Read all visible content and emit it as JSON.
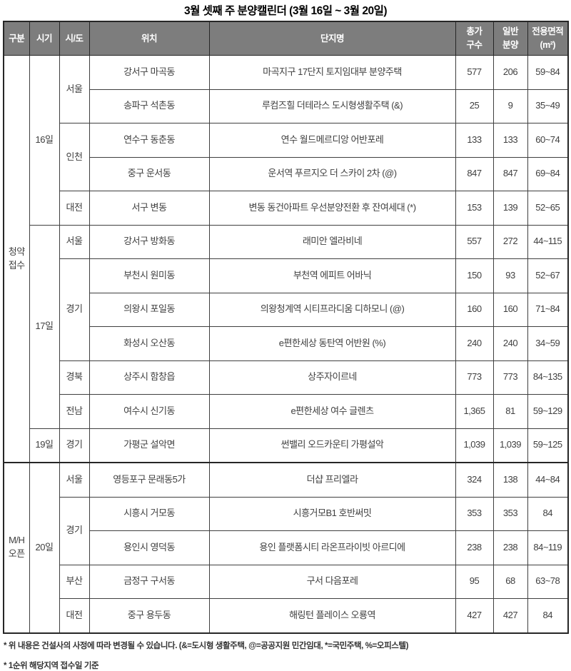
{
  "title": "3월 셋째 주 분양캘린더 (3월 16일 ~ 3월 20일)",
  "colors": {
    "header_bg": "#7d7d7d",
    "header_text": "#ffffff",
    "body_text": "#3f3f3f",
    "border": "#3f3f3f"
  },
  "table": {
    "headers": [
      "구분",
      "시기",
      "시/도",
      "위치",
      "단지명",
      "총가\n구수",
      "일반\n분양",
      "전용면적\n(m²)"
    ]
  },
  "groups": [
    {
      "category": "청약\n접수",
      "days": [
        {
          "day": "16일",
          "regions": [
            {
              "sido": "서울",
              "rows": [
                {
                  "location": "강서구 마곡동",
                  "complex": "마곡지구 17단지 토지임대부 분양주택",
                  "total": "577",
                  "general": "206",
                  "area": "59~84"
                },
                {
                  "location": "송파구 석촌동",
                  "complex": "루컴즈힐 더테라스 도시형생활주택 (&)",
                  "total": "25",
                  "general": "9",
                  "area": "35~49"
                }
              ]
            },
            {
              "sido": "인천",
              "rows": [
                {
                  "location": "연수구 동춘동",
                  "complex": "연수 월드메르디앙 어반포레",
                  "total": "133",
                  "general": "133",
                  "area": "60~74"
                },
                {
                  "location": "중구 운서동",
                  "complex": "운서역 푸르지오 더 스카이 2차 (@)",
                  "total": "847",
                  "general": "847",
                  "area": "69~84"
                }
              ]
            },
            {
              "sido": "대전",
              "rows": [
                {
                  "location": "서구 변동",
                  "complex": "변동 동건아파트 우선분양전환 후 잔여세대 (*)",
                  "total": "153",
                  "general": "139",
                  "area": "52~65"
                }
              ]
            }
          ]
        },
        {
          "day": "17일",
          "regions": [
            {
              "sido": "서울",
              "rows": [
                {
                  "location": "강서구 방화동",
                  "complex": "래미안 엘라비네",
                  "total": "557",
                  "general": "272",
                  "area": "44~115"
                }
              ]
            },
            {
              "sido": "경기",
              "rows": [
                {
                  "location": "부천시 원미동",
                  "complex": "부천역 에피트 어바닉",
                  "total": "150",
                  "general": "93",
                  "area": "52~67"
                },
                {
                  "location": "의왕시 포일동",
                  "complex": "의왕청계역 시티프라디움 디하모니 (@)",
                  "total": "160",
                  "general": "160",
                  "area": "71~84"
                },
                {
                  "location": "화성시 오산동",
                  "complex": "e편한세상 동탄역 어반원 (%)",
                  "total": "240",
                  "general": "240",
                  "area": "34~59"
                }
              ]
            },
            {
              "sido": "경북",
              "rows": [
                {
                  "location": "상주시 함창읍",
                  "complex": "상주자이르네",
                  "total": "773",
                  "general": "773",
                  "area": "84~135"
                }
              ]
            },
            {
              "sido": "전남",
              "rows": [
                {
                  "location": "여수시 신기동",
                  "complex": "e편한세상 여수 글렌츠",
                  "total": "1,365",
                  "general": "81",
                  "area": "59~129"
                }
              ]
            }
          ]
        },
        {
          "day": "19일",
          "regions": [
            {
              "sido": "경기",
              "rows": [
                {
                  "location": "가평군 설악면",
                  "complex": "썬밸리 오드카운티 가평설악",
                  "total": "1,039",
                  "general": "1,039",
                  "area": "59~125"
                }
              ]
            }
          ]
        }
      ]
    },
    {
      "category": "M/H\n오픈",
      "days": [
        {
          "day": "20일",
          "regions": [
            {
              "sido": "서울",
              "rows": [
                {
                  "location": "영등포구 문래동5가",
                  "complex": "더샵 프리엘라",
                  "total": "324",
                  "general": "138",
                  "area": "44~84"
                }
              ]
            },
            {
              "sido": "경기",
              "rows": [
                {
                  "location": "시흥시 거모동",
                  "complex": "시흥거모B1 호반써밋",
                  "total": "353",
                  "general": "353",
                  "area": "84"
                },
                {
                  "location": "용인시 영덕동",
                  "complex": "용인 플랫폼시티 라온프라이빗 아르디에",
                  "total": "238",
                  "general": "238",
                  "area": "84~119"
                }
              ]
            },
            {
              "sido": "부산",
              "rows": [
                {
                  "location": "금정구 구서동",
                  "complex": "구서 다음포레",
                  "total": "95",
                  "general": "68",
                  "area": "63~78"
                }
              ]
            },
            {
              "sido": "대전",
              "rows": [
                {
                  "location": "중구 용두동",
                  "complex": "해링턴 플레이스 오룡역",
                  "total": "427",
                  "general": "427",
                  "area": "84"
                }
              ]
            }
          ]
        }
      ]
    }
  ],
  "footnotes": [
    "* 위 내용은 건설사의 사정에 따라 변경될 수 있습니다. (&=도시형 생활주택, @=공공지원 민간임대, *=국민주택, %=오피스텔)",
    "* 1순위 해당지역 접수일 기준"
  ]
}
